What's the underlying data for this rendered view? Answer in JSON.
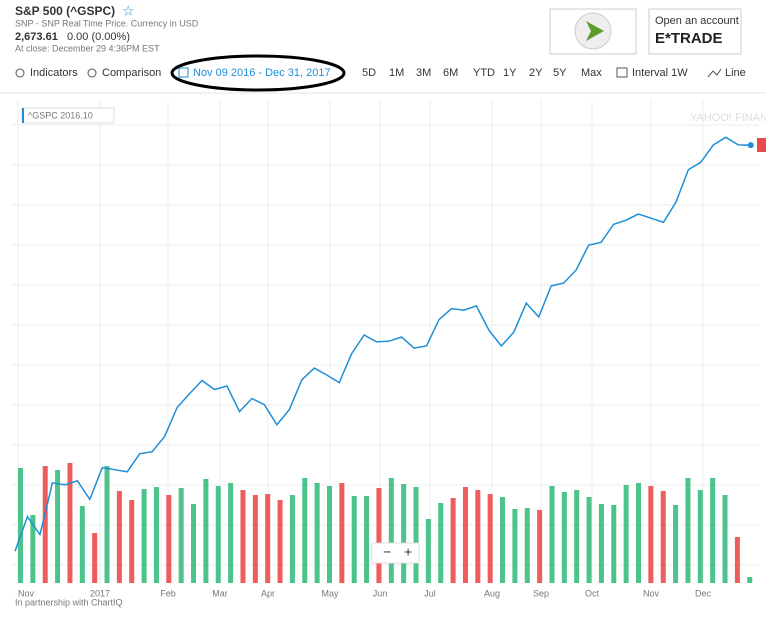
{
  "header": {
    "title": "S&P 500 (^GSPC)",
    "source": "SNP - SNP Real Time Price. Currency in USD",
    "price": "2,673.61",
    "change": "0.00 (0.00%)",
    "close": "At close: December 29 4:36PM EST"
  },
  "ad": {
    "text": "Open an account",
    "brand": "E*TRADE"
  },
  "toolbar": {
    "indicators": "Indicators",
    "comparison": "Comparison",
    "range": "Nov 09 2016 - Dec 31, 2017",
    "periods": [
      "5D",
      "1M",
      "3M",
      "6M",
      "YTD",
      "1Y",
      "2Y",
      "5Y",
      "Max"
    ],
    "interval": "Interval 1W",
    "style": "Line"
  },
  "legend": "^GSPC 2016.10",
  "footer": "In partnership with ChartIQ",
  "zoom": [
    "−",
    "+"
  ],
  "chart_data": {
    "type": "line",
    "color": "#1e8fd6",
    "values": [
      2086,
      2136,
      2110,
      2185,
      2182,
      2188,
      2161,
      2207,
      2204,
      2201,
      2227,
      2230,
      2252,
      2294,
      2314,
      2333,
      2320,
      2325,
      2288,
      2307,
      2298,
      2269,
      2291,
      2334,
      2351,
      2341,
      2330,
      2372,
      2399,
      2389,
      2390,
      2396,
      2380,
      2383,
      2421,
      2437,
      2435,
      2441,
      2406,
      2383,
      2403,
      2445,
      2425,
      2470,
      2474,
      2493,
      2529,
      2533,
      2559,
      2565,
      2574,
      2568,
      2562,
      2591,
      2638,
      2649,
      2674,
      2685,
      2674,
      2673.61
    ],
    "ylim": [
      2040,
      2739
    ],
    "x_labels": [
      "Nov",
      "2017",
      "Feb",
      "Mar",
      "Apr",
      "May",
      "Jun",
      "Jul",
      "Aug",
      "Sep",
      "Oct",
      "Nov",
      "Dec"
    ],
    "volume": {
      "values": [
        115,
        68,
        117,
        113,
        120,
        77,
        50,
        117,
        92,
        83,
        94,
        96,
        88,
        95,
        79,
        104,
        97,
        100,
        93,
        88,
        89,
        83,
        88,
        105,
        100,
        97,
        100,
        87,
        87,
        95,
        105,
        99,
        96,
        64,
        80,
        85,
        96,
        93,
        89,
        86,
        74,
        75,
        73,
        97,
        91,
        93,
        86,
        79,
        78,
        98,
        100,
        97,
        92,
        78,
        105,
        93,
        105,
        88,
        46,
        6
      ],
      "vlim": [
        0,
        483
      ],
      "colors": [
        "#4cc38a",
        "#4cc38a",
        "#ee5c5c",
        "#4cc38a",
        "#ee5c5c",
        "#4cc38a",
        "#ee5c5c",
        "#4cc38a",
        "#ee5c5c",
        "#ee5c5c",
        "#4cc38a",
        "#4cc38a",
        "#ee5c5c",
        "#4cc38a",
        "#4cc38a",
        "#4cc38a",
        "#4cc38a",
        "#4cc38a",
        "#ee5c5c",
        "#ee5c5c",
        "#ee5c5c",
        "#ee5c5c",
        "#4cc38a",
        "#4cc38a",
        "#4cc38a",
        "#4cc38a",
        "#ee5c5c",
        "#4cc38a",
        "#4cc38a",
        "#ee5c5c",
        "#4cc38a",
        "#4cc38a",
        "#4cc38a",
        "#4cc38a",
        "#4cc38a",
        "#ee5c5c",
        "#ee5c5c",
        "#ee5c5c",
        "#ee5c5c",
        "#4cc38a",
        "#4cc38a",
        "#4cc38a",
        "#ee5c5c",
        "#4cc38a",
        "#4cc38a",
        "#4cc38a",
        "#4cc38a",
        "#4cc38a",
        "#4cc38a",
        "#4cc38a",
        "#4cc38a",
        "#ee5c5c",
        "#ee5c5c",
        "#4cc38a",
        "#4cc38a",
        "#4cc38a",
        "#4cc38a",
        "#4cc38a",
        "#ee5c5c",
        "#4cc38a"
      ]
    }
  }
}
